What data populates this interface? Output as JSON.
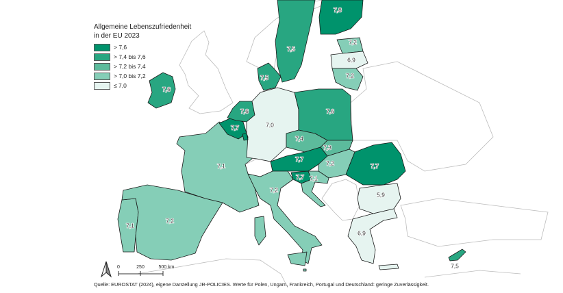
{
  "legend": {
    "title_line1": "Allgemeine Lebenszufriedenheit",
    "title_line2": "in der EU 2023",
    "classes": [
      {
        "label": "> 7,6",
        "color": "#00936c"
      },
      {
        "label": "> 7,4 bis 7,6",
        "color": "#28a681"
      },
      {
        "label": "> 7,2 bis 7,4",
        "color": "#5cbb9c"
      },
      {
        "label": "> 7,0 bis 7,2",
        "color": "#85ceb7"
      },
      {
        "label": "≤ 7,0",
        "color": "#e6f4f0"
      }
    ]
  },
  "regions": {
    "ireland": {
      "value": "7,6",
      "class": 1
    },
    "portugal": {
      "value": "7,1",
      "class": 3
    },
    "spain": {
      "value": "7,2",
      "class": 3
    },
    "france": {
      "value": "7,1",
      "class": 3
    },
    "belgium": {
      "value": "7,7",
      "class": 0
    },
    "netherlands": {
      "value": "7,6",
      "class": 1
    },
    "germany": {
      "value": "7,0",
      "class": 4
    },
    "denmark": {
      "value": "7,5",
      "class": 1
    },
    "sweden": {
      "value": "7,5",
      "class": 1
    },
    "finland": {
      "value": "7,8",
      "class": 0
    },
    "estonia": {
      "value": "7,2",
      "class": 3
    },
    "latvia": {
      "value": "6,9",
      "class": 4
    },
    "lithuania": {
      "value": "7,2",
      "class": 3
    },
    "poland": {
      "value": "7,6",
      "class": 1
    },
    "czechia": {
      "value": "7,4",
      "class": 2
    },
    "austria": {
      "value": "7,7",
      "class": 0
    },
    "slovakia": {
      "value": "7,3",
      "class": 2
    },
    "hungary": {
      "value": "7,2",
      "class": 3
    },
    "slovenia": {
      "value": "7,7",
      "class": 0
    },
    "croatia": {
      "value": "7,1",
      "class": 3
    },
    "romania": {
      "value": "7,7",
      "class": 0
    },
    "bulgaria": {
      "value": "5,9",
      "class": 4
    },
    "greece": {
      "value": "6,9",
      "class": 4
    },
    "italy": {
      "value": "7,2",
      "class": 3
    },
    "cyprus": {
      "value": "7,5",
      "class": 1
    },
    "luxembourg": {
      "value": "",
      "class": 0
    },
    "malta": {
      "value": "",
      "class": 3
    }
  },
  "scalebar": {
    "ticks": [
      "0",
      "250",
      "500 km"
    ]
  },
  "north_arrow": "north-arrow-icon",
  "source": "Quelle: EUROSTAT (2024), eigene Darstellung JR-POLICIES. Werte für Polen, Ungarn, Frankreich, Portugal und Deutschland: geringe Zuverlässigkeit."
}
